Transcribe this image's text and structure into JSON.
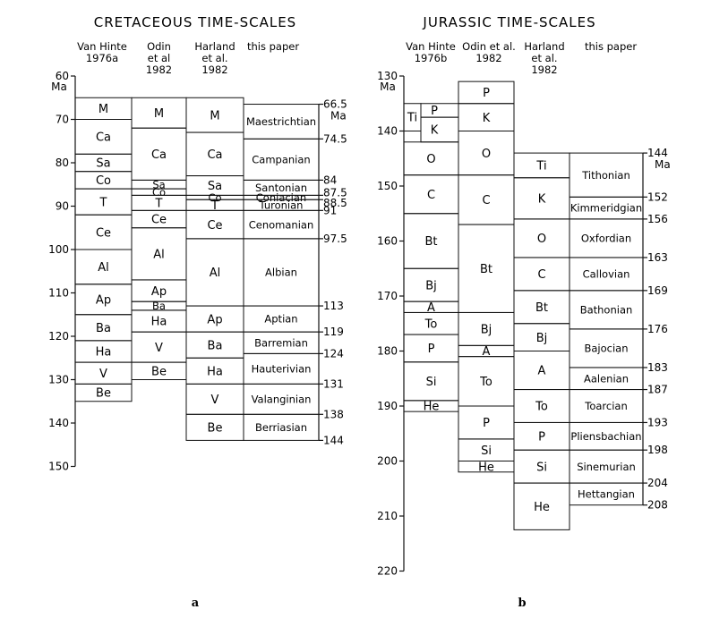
{
  "panel_a": {
    "title": "CRETACEOUS TIME-SCALES",
    "label": "a",
    "unit": "Ma",
    "axis_ticks": [
      "60",
      "70",
      "80",
      "90",
      "100",
      "110",
      "120",
      "130",
      "140",
      "150"
    ],
    "columns": [
      {
        "header": [
          "Van Hinte",
          "1976a"
        ],
        "boxes": [
          {
            "label": "M",
            "top": 65,
            "bottom": 70
          },
          {
            "label": "Ca",
            "top": 70,
            "bottom": 78
          },
          {
            "label": "Sa",
            "top": 78,
            "bottom": 82
          },
          {
            "label": "Co",
            "top": 82,
            "bottom": 86
          },
          {
            "label": "T",
            "top": 86,
            "bottom": 92
          },
          {
            "label": "Ce",
            "top": 92,
            "bottom": 100
          },
          {
            "label": "Al",
            "top": 100,
            "bottom": 108
          },
          {
            "label": "Ap",
            "top": 108,
            "bottom": 115
          },
          {
            "label": "Ba",
            "top": 115,
            "bottom": 121
          },
          {
            "label": "Ha",
            "top": 121,
            "bottom": 126
          },
          {
            "label": "V",
            "top": 126,
            "bottom": 131
          },
          {
            "label": "Be",
            "top": 131,
            "bottom": 135
          }
        ]
      },
      {
        "header": [
          "Odin",
          "et al",
          "1982"
        ],
        "boxes": [
          {
            "label": "M",
            "top": 65,
            "bottom": 72
          },
          {
            "label": "Ca",
            "top": 72,
            "bottom": 84
          },
          {
            "label": "Sa",
            "top": 84,
            "bottom": 86
          },
          {
            "label": "Co",
            "top": 86,
            "bottom": 87.5
          },
          {
            "label": "T",
            "top": 87.5,
            "bottom": 91
          },
          {
            "label": "Ce",
            "top": 91,
            "bottom": 95
          },
          {
            "label": "Al",
            "top": 95,
            "bottom": 107
          },
          {
            "label": "Ap",
            "top": 107,
            "bottom": 112
          },
          {
            "label": "Ba",
            "top": 112,
            "bottom": 114
          },
          {
            "label": "Ha",
            "top": 114,
            "bottom": 119
          },
          {
            "label": "V",
            "top": 119,
            "bottom": 126
          },
          {
            "label": "Be",
            "top": 126,
            "bottom": 130
          }
        ]
      },
      {
        "header": [
          "Harland",
          "et al.",
          "1982"
        ],
        "boxes": [
          {
            "label": "M",
            "top": 65,
            "bottom": 73
          },
          {
            "label": "Ca",
            "top": 73,
            "bottom": 83
          },
          {
            "label": "Sa",
            "top": 83,
            "bottom": 87.5
          },
          {
            "label": "Co",
            "top": 87.5,
            "bottom": 88.5
          },
          {
            "label": "T",
            "top": 88.5,
            "bottom": 91
          },
          {
            "label": "Ce",
            "top": 91,
            "bottom": 97.5
          },
          {
            "label": "Al",
            "top": 97.5,
            "bottom": 113
          },
          {
            "label": "Ap",
            "top": 113,
            "bottom": 119
          },
          {
            "label": "Ba",
            "top": 119,
            "bottom": 125
          },
          {
            "label": "Ha",
            "top": 125,
            "bottom": 131
          },
          {
            "label": "V",
            "top": 131,
            "bottom": 138
          },
          {
            "label": "Be",
            "top": 138,
            "bottom": 144
          }
        ]
      },
      {
        "header": [
          "this paper"
        ],
        "boxes": [
          {
            "label": "Maestrichtian",
            "top": 66.5,
            "bottom": 74.5
          },
          {
            "label": "Campanian",
            "top": 74.5,
            "bottom": 84
          },
          {
            "label": "Santonian",
            "top": 84,
            "bottom": 87.5
          },
          {
            "label": "Coniacian",
            "top": 87.5,
            "bottom": 88.5
          },
          {
            "label": "Turonian",
            "top": 88.5,
            "bottom": 91
          },
          {
            "label": "Cenomanian",
            "top": 91,
            "bottom": 97.5
          },
          {
            "label": "Albian",
            "top": 97.5,
            "bottom": 113
          },
          {
            "label": "Aptian",
            "top": 113,
            "bottom": 119
          },
          {
            "label": "Barremian",
            "top": 119,
            "bottom": 124
          },
          {
            "label": "Hauterivian",
            "top": 124,
            "bottom": 131
          },
          {
            "label": "Valanginian",
            "top": 131,
            "bottom": 138
          },
          {
            "label": "Berriasian",
            "top": 138,
            "bottom": 144
          }
        ]
      }
    ],
    "boundaries": [
      {
        "value": 66.5,
        "label": "66.5",
        "unit": "Ma"
      },
      {
        "value": 74.5,
        "label": "74.5"
      },
      {
        "value": 84,
        "label": "84"
      },
      {
        "value": 87.5,
        "label": "87.5"
      },
      {
        "value": 88.5,
        "label": "88.5"
      },
      {
        "value": 91,
        "label": "91"
      },
      {
        "value": 97.5,
        "label": "97.5"
      },
      {
        "value": 113,
        "label": "113"
      },
      {
        "value": 119,
        "label": "119"
      },
      {
        "value": 124,
        "label": "124"
      },
      {
        "value": 131,
        "label": "131"
      },
      {
        "value": 138,
        "label": "138"
      },
      {
        "value": 144,
        "label": "144"
      }
    ]
  },
  "panel_b": {
    "title": "JURASSIC TIME-SCALES",
    "label": "b",
    "unit": "Ma",
    "axis_ticks": [
      "130",
      "140",
      "150",
      "160",
      "170",
      "180",
      "190",
      "200",
      "210",
      "220"
    ],
    "columns": [
      {
        "header": [
          "Van Hinte",
          "1976b"
        ],
        "boxes": [
          {
            "label": "P",
            "top": 135,
            "bottom": 137.5
          },
          {
            "label": "K",
            "top": 137.5,
            "bottom": 142
          },
          {
            "label": "O",
            "top": 142,
            "bottom": 148
          },
          {
            "label": "C",
            "top": 148,
            "bottom": 155
          },
          {
            "label": "Bt",
            "top": 155,
            "bottom": 165
          },
          {
            "label": "Bj",
            "top": 165,
            "bottom": 171
          },
          {
            "label": "A",
            "top": 171,
            "bottom": 173
          },
          {
            "label": "To",
            "top": 173,
            "bottom": 177
          },
          {
            "label": "P",
            "top": 177,
            "bottom": 182
          },
          {
            "label": "Si",
            "top": 182,
            "bottom": 189
          },
          {
            "label": "He",
            "top": 189,
            "bottom": 191
          }
        ]
      },
      {
        "header": [
          "Odin et al.",
          "1982"
        ],
        "boxes": [
          {
            "label": "P",
            "top": 131,
            "bottom": 135
          },
          {
            "label": "K",
            "top": 135,
            "bottom": 140
          },
          {
            "label": "O",
            "top": 140,
            "bottom": 148
          },
          {
            "label": "C",
            "top": 148,
            "bottom": 157
          },
          {
            "label": "Bt",
            "top": 157,
            "bottom": 173
          },
          {
            "label": "Bj",
            "top": 173,
            "bottom": 179
          },
          {
            "label": "A",
            "top": 179,
            "bottom": 181
          },
          {
            "label": "To",
            "top": 181,
            "bottom": 190
          },
          {
            "label": "P",
            "top": 190,
            "bottom": 196
          },
          {
            "label": "Si",
            "top": 196,
            "bottom": 200
          },
          {
            "label": "He",
            "top": 200,
            "bottom": 202
          }
        ]
      },
      {
        "header": [
          "Harland",
          "et al.",
          "1982"
        ],
        "boxes": [
          {
            "label": "Ti",
            "top": 144,
            "bottom": 148.5
          },
          {
            "label": "K",
            "top": 148.5,
            "bottom": 156
          },
          {
            "label": "O",
            "top": 156,
            "bottom": 163
          },
          {
            "label": "C",
            "top": 163,
            "bottom": 169
          },
          {
            "label": "Bt",
            "top": 169,
            "bottom": 175
          },
          {
            "label": "Bj",
            "top": 175,
            "bottom": 180
          },
          {
            "label": "A",
            "top": 180,
            "bottom": 187
          },
          {
            "label": "To",
            "top": 187,
            "bottom": 193
          },
          {
            "label": "P",
            "top": 193,
            "bottom": 198
          },
          {
            "label": "Si",
            "top": 198,
            "bottom": 204
          },
          {
            "label": "He",
            "top": 204,
            "bottom": 212.5
          }
        ]
      },
      {
        "header": [
          "this paper"
        ],
        "boxes": [
          {
            "label": "Tithonian",
            "top": 144,
            "bottom": 152
          },
          {
            "label": "Kimmeridgian",
            "top": 152,
            "bottom": 156
          },
          {
            "label": "Oxfordian",
            "top": 156,
            "bottom": 163
          },
          {
            "label": "Callovian",
            "top": 163,
            "bottom": 169
          },
          {
            "label": "Bathonian",
            "top": 169,
            "bottom": 176
          },
          {
            "label": "Bajocian",
            "top": 176,
            "bottom": 183
          },
          {
            "label": "Aalenian",
            "top": 183,
            "bottom": 187
          },
          {
            "label": "Toarcian",
            "top": 187,
            "bottom": 193
          },
          {
            "label": "Pliensbachian",
            "top": 193,
            "bottom": 198
          },
          {
            "label": "Sinemurian",
            "top": 198,
            "bottom": 204
          },
          {
            "label": "Hettangian",
            "top": 204,
            "bottom": 208
          }
        ]
      }
    ],
    "extra_box": {
      "label": "Ti",
      "top": 135,
      "bottom": 140
    },
    "boundaries": [
      {
        "value": 144,
        "label": "144",
        "unit": "Ma"
      },
      {
        "value": 152,
        "label": "152"
      },
      {
        "value": 156,
        "label": "156"
      },
      {
        "value": 163,
        "label": "163"
      },
      {
        "value": 169,
        "label": "169"
      },
      {
        "value": 176,
        "label": "176"
      },
      {
        "value": 183,
        "label": "183"
      },
      {
        "value": 187,
        "label": "187"
      },
      {
        "value": 193,
        "label": "193"
      },
      {
        "value": 198,
        "label": "198"
      },
      {
        "value": 204,
        "label": "204"
      },
      {
        "value": 208,
        "label": "208"
      }
    ]
  }
}
